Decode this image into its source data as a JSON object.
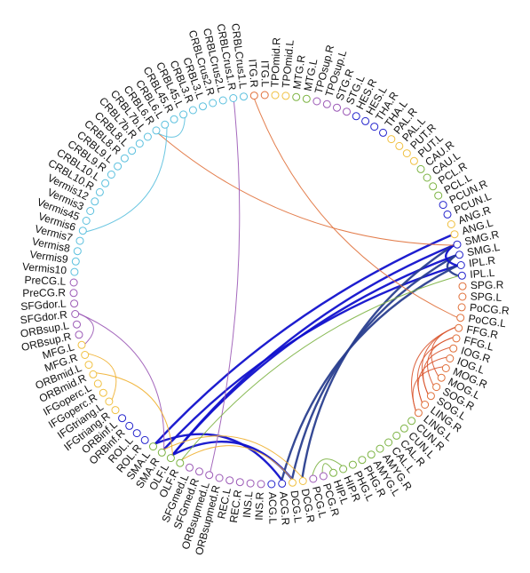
{
  "nodes": [
    {
      "label": "ITG.L",
      "color": "#e0703a"
    },
    {
      "label": "TPOmid.R",
      "color": "#f0c040"
    },
    {
      "label": "TPOmid.L",
      "color": "#f0c040"
    },
    {
      "label": "MTG.R",
      "color": "#7cb342"
    },
    {
      "label": "MTG.L",
      "color": "#7cb342"
    },
    {
      "label": "TPOsup.R",
      "color": "#9b59b6"
    },
    {
      "label": "TPOsup.L",
      "color": "#9b59b6"
    },
    {
      "label": "STG.R",
      "color": "#9b59b6"
    },
    {
      "label": "STG.L",
      "color": "#9b59b6"
    },
    {
      "label": "HES.R",
      "color": "#2222cc"
    },
    {
      "label": "HES.L",
      "color": "#2222cc"
    },
    {
      "label": "THA.R",
      "color": "#2222cc"
    },
    {
      "label": "THA.L",
      "color": "#2222cc"
    },
    {
      "label": "PAL.R",
      "color": "#f0c040"
    },
    {
      "label": "PAL.L",
      "color": "#f0c040"
    },
    {
      "label": "PUT.R",
      "color": "#f0c040"
    },
    {
      "label": "PUT.L",
      "color": "#f0c040"
    },
    {
      "label": "CAU.R",
      "color": "#7cb342"
    },
    {
      "label": "CAU.L",
      "color": "#7cb342"
    },
    {
      "label": "PCL.R",
      "color": "#7cb342"
    },
    {
      "label": "PCL.L",
      "color": "#7cb342"
    },
    {
      "label": "PCUN.R",
      "color": "#2222cc"
    },
    {
      "label": "PCUN.L",
      "color": "#2222cc"
    },
    {
      "label": "ANG.R",
      "color": "#f0c040"
    },
    {
      "label": "ANG.L",
      "color": "#f0c040"
    },
    {
      "label": "SMG.R",
      "color": "#2222cc"
    },
    {
      "label": "SMG.L",
      "color": "#2222cc"
    },
    {
      "label": "IPL.R",
      "color": "#2222cc"
    },
    {
      "label": "IPL.L",
      "color": "#2222cc"
    },
    {
      "label": "SPG.R",
      "color": "#e0703a"
    },
    {
      "label": "SPG.L",
      "color": "#e0703a"
    },
    {
      "label": "PoCG.R",
      "color": "#e0703a"
    },
    {
      "label": "PoCG.L",
      "color": "#e0703a"
    },
    {
      "label": "FFG.R",
      "color": "#e0703a"
    },
    {
      "label": "FFG.L",
      "color": "#e0703a"
    },
    {
      "label": "IOG.R",
      "color": "#e0703a"
    },
    {
      "label": "IOG.L",
      "color": "#e0703a"
    },
    {
      "label": "MOG.R",
      "color": "#e0703a"
    },
    {
      "label": "MOG.L",
      "color": "#e0703a"
    },
    {
      "label": "SOG.R",
      "color": "#e0703a"
    },
    {
      "label": "SOG.L",
      "color": "#e0703a"
    },
    {
      "label": "LING.R",
      "color": "#e0703a"
    },
    {
      "label": "LING.L",
      "color": "#e0703a"
    },
    {
      "label": "CUN.R",
      "color": "#7cb342"
    },
    {
      "label": "CUN.L",
      "color": "#7cb342"
    },
    {
      "label": "CAL.R",
      "color": "#7cb342"
    },
    {
      "label": "CAL.L",
      "color": "#7cb342"
    },
    {
      "label": "AMYG.R",
      "color": "#7cb342"
    },
    {
      "label": "AMYG.L",
      "color": "#7cb342"
    },
    {
      "label": "PHG.R",
      "color": "#7cb342"
    },
    {
      "label": "PHG.L",
      "color": "#7cb342"
    },
    {
      "label": "HIP.R",
      "color": "#7cb342"
    },
    {
      "label": "HIP.L",
      "color": "#7cb342"
    },
    {
      "label": "PCG.R",
      "color": "#9b59b6"
    },
    {
      "label": "PCG.L",
      "color": "#9b59b6"
    },
    {
      "label": "DCG.R",
      "color": "#f0c040"
    },
    {
      "label": "DCG.L",
      "color": "#f0c040"
    },
    {
      "label": "ACG.R",
      "color": "#2222cc"
    },
    {
      "label": "ACG.L",
      "color": "#2222cc"
    },
    {
      "label": "INS.R",
      "color": "#9b59b6"
    },
    {
      "label": "INS.L",
      "color": "#9b59b6"
    },
    {
      "label": "REC.R",
      "color": "#9b59b6"
    },
    {
      "label": "REC.L",
      "color": "#9b59b6"
    },
    {
      "label": "ORBsupmed.R",
      "color": "#9b59b6"
    },
    {
      "label": "ORBsupmed.L",
      "color": "#9b59b6"
    },
    {
      "label": "SFGmed.R",
      "color": "#9b59b6"
    },
    {
      "label": "SFGmed.L",
      "color": "#9b59b6"
    },
    {
      "label": "OLF.R",
      "color": "#7cb342"
    },
    {
      "label": "OLF.L",
      "color": "#7cb342"
    },
    {
      "label": "SMA.R",
      "color": "#7cb342"
    },
    {
      "label": "SMA.L",
      "color": "#7cb342"
    },
    {
      "label": "ROL.R",
      "color": "#2222cc"
    },
    {
      "label": "ROL.L",
      "color": "#2222cc"
    },
    {
      "label": "ORBinf.R",
      "color": "#2222cc"
    },
    {
      "label": "ORBinf.L",
      "color": "#2222cc"
    },
    {
      "label": "IFGtriang.R",
      "color": "#f0c040"
    },
    {
      "label": "IFGtriang.L",
      "color": "#f0c040"
    },
    {
      "label": "IFGoperc.R",
      "color": "#f0c040"
    },
    {
      "label": "IFGoperc.L",
      "color": "#f0c040"
    },
    {
      "label": "ORBmid.R",
      "color": "#f0c040"
    },
    {
      "label": "ORBmid.L",
      "color": "#f0c040"
    },
    {
      "label": "MFG.R",
      "color": "#f0c040"
    },
    {
      "label": "MFG.L",
      "color": "#f0c040"
    },
    {
      "label": "ORBsup.R",
      "color": "#9b59b6"
    },
    {
      "label": "ORBsup.L",
      "color": "#9b59b6"
    },
    {
      "label": "SFGdor.R",
      "color": "#9b59b6"
    },
    {
      "label": "SFGdor.L",
      "color": "#9b59b6"
    },
    {
      "label": "PreCG.R",
      "color": "#9b59b6"
    },
    {
      "label": "PreCG.L",
      "color": "#9b59b6"
    },
    {
      "label": "Vermis10",
      "color": "#5bc0de"
    },
    {
      "label": "Vermis9",
      "color": "#5bc0de"
    },
    {
      "label": "Vermis8",
      "color": "#5bc0de"
    },
    {
      "label": "Vermis7",
      "color": "#5bc0de"
    },
    {
      "label": "Vermis6",
      "color": "#5bc0de"
    },
    {
      "label": "Vermis45",
      "color": "#5bc0de"
    },
    {
      "label": "Vermis3",
      "color": "#5bc0de"
    },
    {
      "label": "Vermis12",
      "color": "#5bc0de"
    },
    {
      "label": "CRBL10.R",
      "color": "#5bc0de"
    },
    {
      "label": "CRBL10.L",
      "color": "#5bc0de"
    },
    {
      "label": "CRBL9.R",
      "color": "#5bc0de"
    },
    {
      "label": "CRBL9.L",
      "color": "#5bc0de"
    },
    {
      "label": "CRBL8.R",
      "color": "#5bc0de"
    },
    {
      "label": "CRBL8.L",
      "color": "#5bc0de"
    },
    {
      "label": "CRBL7b.R",
      "color": "#5bc0de"
    },
    {
      "label": "CRBL7b.L",
      "color": "#5bc0de"
    },
    {
      "label": "CRBL6.R",
      "color": "#5bc0de"
    },
    {
      "label": "CRBL6.L",
      "color": "#5bc0de"
    },
    {
      "label": "CRBL45.R",
      "color": "#5bc0de"
    },
    {
      "label": "CRBL45.L",
      "color": "#5bc0de"
    },
    {
      "label": "CRBL3.R",
      "color": "#5bc0de"
    },
    {
      "label": "CRBL3.L",
      "color": "#5bc0de"
    },
    {
      "label": "CRBLCrus2.R",
      "color": "#5bc0de"
    },
    {
      "label": "CRBLCrus2.L",
      "color": "#5bc0de"
    },
    {
      "label": "CRBLCrus1.R",
      "color": "#5bc0de"
    },
    {
      "label": "CRBLCrus1.L",
      "color": "#5bc0de"
    },
    {
      "label": "ITG.R",
      "color": "#e0703a"
    }
  ],
  "edges": [
    {
      "source": "ANG.L",
      "target": "SMA.L",
      "color": "#1111cc"
    },
    {
      "source": "SMG.L",
      "target": "OLF.L",
      "color": "#1111cc"
    },
    {
      "source": "SMG.R",
      "target": "OLF.L",
      "color": "#1111cc"
    },
    {
      "source": "IPL.R",
      "target": "SMA.R",
      "color": "#1111cc"
    },
    {
      "source": "OLF.L",
      "target": "DCG.L",
      "color": "#1111cc"
    },
    {
      "source": "SMA.L",
      "target": "ACG.R",
      "color": "#1111cc"
    },
    {
      "source": "SMG.L",
      "target": "DCG.L",
      "color": "#2a3f8f"
    },
    {
      "source": "SMG.R",
      "target": "DCG.R",
      "color": "#2a3f8f"
    },
    {
      "source": "IPL.R",
      "target": "ACG.R",
      "color": "#2a3f8f"
    },
    {
      "source": "SMG.L",
      "target": "IPL.L",
      "color": "#2a3f8f"
    },
    {
      "source": "SMG.R",
      "target": "IPL.R",
      "color": "#1111cc"
    },
    {
      "source": "ITG.R",
      "target": "PoCG.L",
      "color": "#e0703a"
    },
    {
      "source": "CRBL6.R",
      "target": "SMG.R",
      "color": "#e0703a"
    },
    {
      "source": "CRBL6.R",
      "target": "CRBL45.L",
      "color": "#5bc0de"
    },
    {
      "source": "CRBL6.L",
      "target": "Vermis6",
      "color": "#5bc0de"
    },
    {
      "source": "CRBLCrus1.R",
      "target": "ORBsupmed.L",
      "color": "#9b59b6"
    },
    {
      "source": "SFGdor.R",
      "target": "SMA.R",
      "color": "#9b59b6"
    },
    {
      "source": "SFGdor.R",
      "target": "MFG.L",
      "color": "#9b59b6"
    },
    {
      "source": "ORBmid.R",
      "target": "OLF.L",
      "color": "#f0b030"
    },
    {
      "source": "MFG.R",
      "target": "IFGtriang.L",
      "color": "#f0b030"
    },
    {
      "source": "OLF.R",
      "target": "DCG.L",
      "color": "#f0b030"
    },
    {
      "source": "SMA.R",
      "target": "DCG.R",
      "color": "#f0b030"
    },
    {
      "source": "IPL.L",
      "target": "OLF.R",
      "color": "#7cb342"
    },
    {
      "source": "HIP.R",
      "target": "PCG.L",
      "color": "#7cb342"
    },
    {
      "source": "HIP.L",
      "target": "PCG.R",
      "color": "#7cb342"
    },
    {
      "source": "FFG.R",
      "target": "MOG.L",
      "color": "#d9542c"
    },
    {
      "source": "FFG.R",
      "target": "SOG.L",
      "color": "#d9542c"
    },
    {
      "source": "FFG.L",
      "target": "SOG.R",
      "color": "#d9542c"
    },
    {
      "source": "IOG.R",
      "target": "SOG.L",
      "color": "#d9542c"
    },
    {
      "source": "IOG.L",
      "target": "LING.R",
      "color": "#d9542c"
    },
    {
      "source": "MOG.R",
      "target": "LING.L",
      "color": "#d9542c"
    },
    {
      "source": "FFG.L",
      "target": "LING.R",
      "color": "#d9542c"
    },
    {
      "source": "FFG.R",
      "target": "LING.L",
      "color": "#d9542c"
    }
  ]
}
